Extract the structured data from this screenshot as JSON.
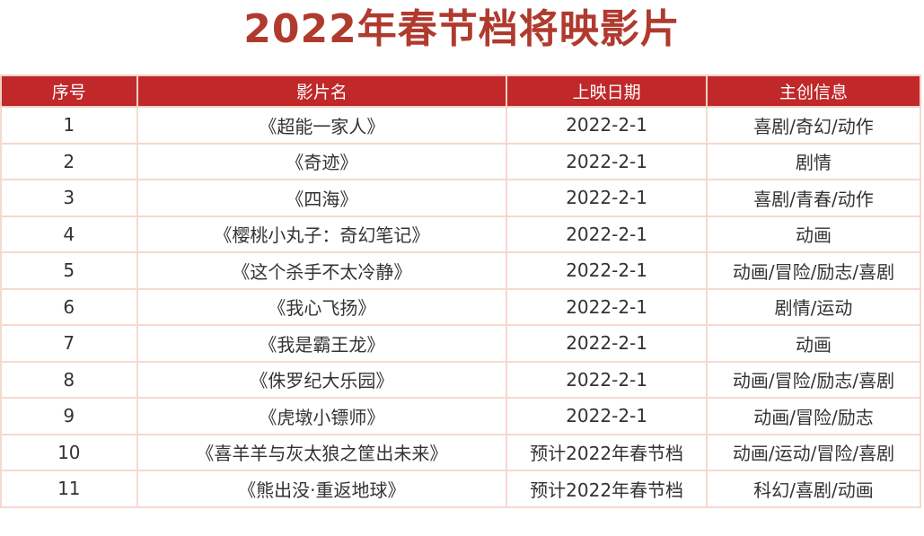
{
  "title": "2022年春节档将映影片",
  "columns": [
    "序号",
    "影片名",
    "上映日期",
    "主创信息"
  ],
  "rows": [
    {
      "no": "1",
      "name": "《超能一家人》",
      "date": "2022-2-1",
      "genre": "喜剧/奇幻/动作"
    },
    {
      "no": "2",
      "name": "《奇迹》",
      "date": "2022-2-1",
      "genre": "剧情"
    },
    {
      "no": "3",
      "name": "《四海》",
      "date": "2022-2-1",
      "genre": "喜剧/青春/动作"
    },
    {
      "no": "4",
      "name": "《樱桃小丸子：奇幻笔记》",
      "date": "2022-2-1",
      "genre": "动画"
    },
    {
      "no": "5",
      "name": "《这个杀手不太冷静》",
      "date": "2022-2-1",
      "genre": "动画/冒险/励志/喜剧"
    },
    {
      "no": "6",
      "name": "《我心飞扬》",
      "date": "2022-2-1",
      "genre": "剧情/运动"
    },
    {
      "no": "7",
      "name": "《我是霸王龙》",
      "date": "2022-2-1",
      "genre": "动画"
    },
    {
      "no": "8",
      "name": "《侏罗纪大乐园》",
      "date": "2022-2-1",
      "genre": "动画/冒险/励志/喜剧"
    },
    {
      "no": "9",
      "name": "《虎墩小镖师》",
      "date": "2022-2-1",
      "genre": "动画/冒险/励志"
    },
    {
      "no": "10",
      "name": "《喜羊羊与灰太狼之筐出未来》",
      "date": "预计2022年春节档",
      "genre": "动画/运动/冒险/喜剧"
    },
    {
      "no": "11",
      "name": "《熊出没·重返地球》",
      "date": "预计2022年春节档",
      "genre": "科幻/喜剧/动画"
    }
  ]
}
